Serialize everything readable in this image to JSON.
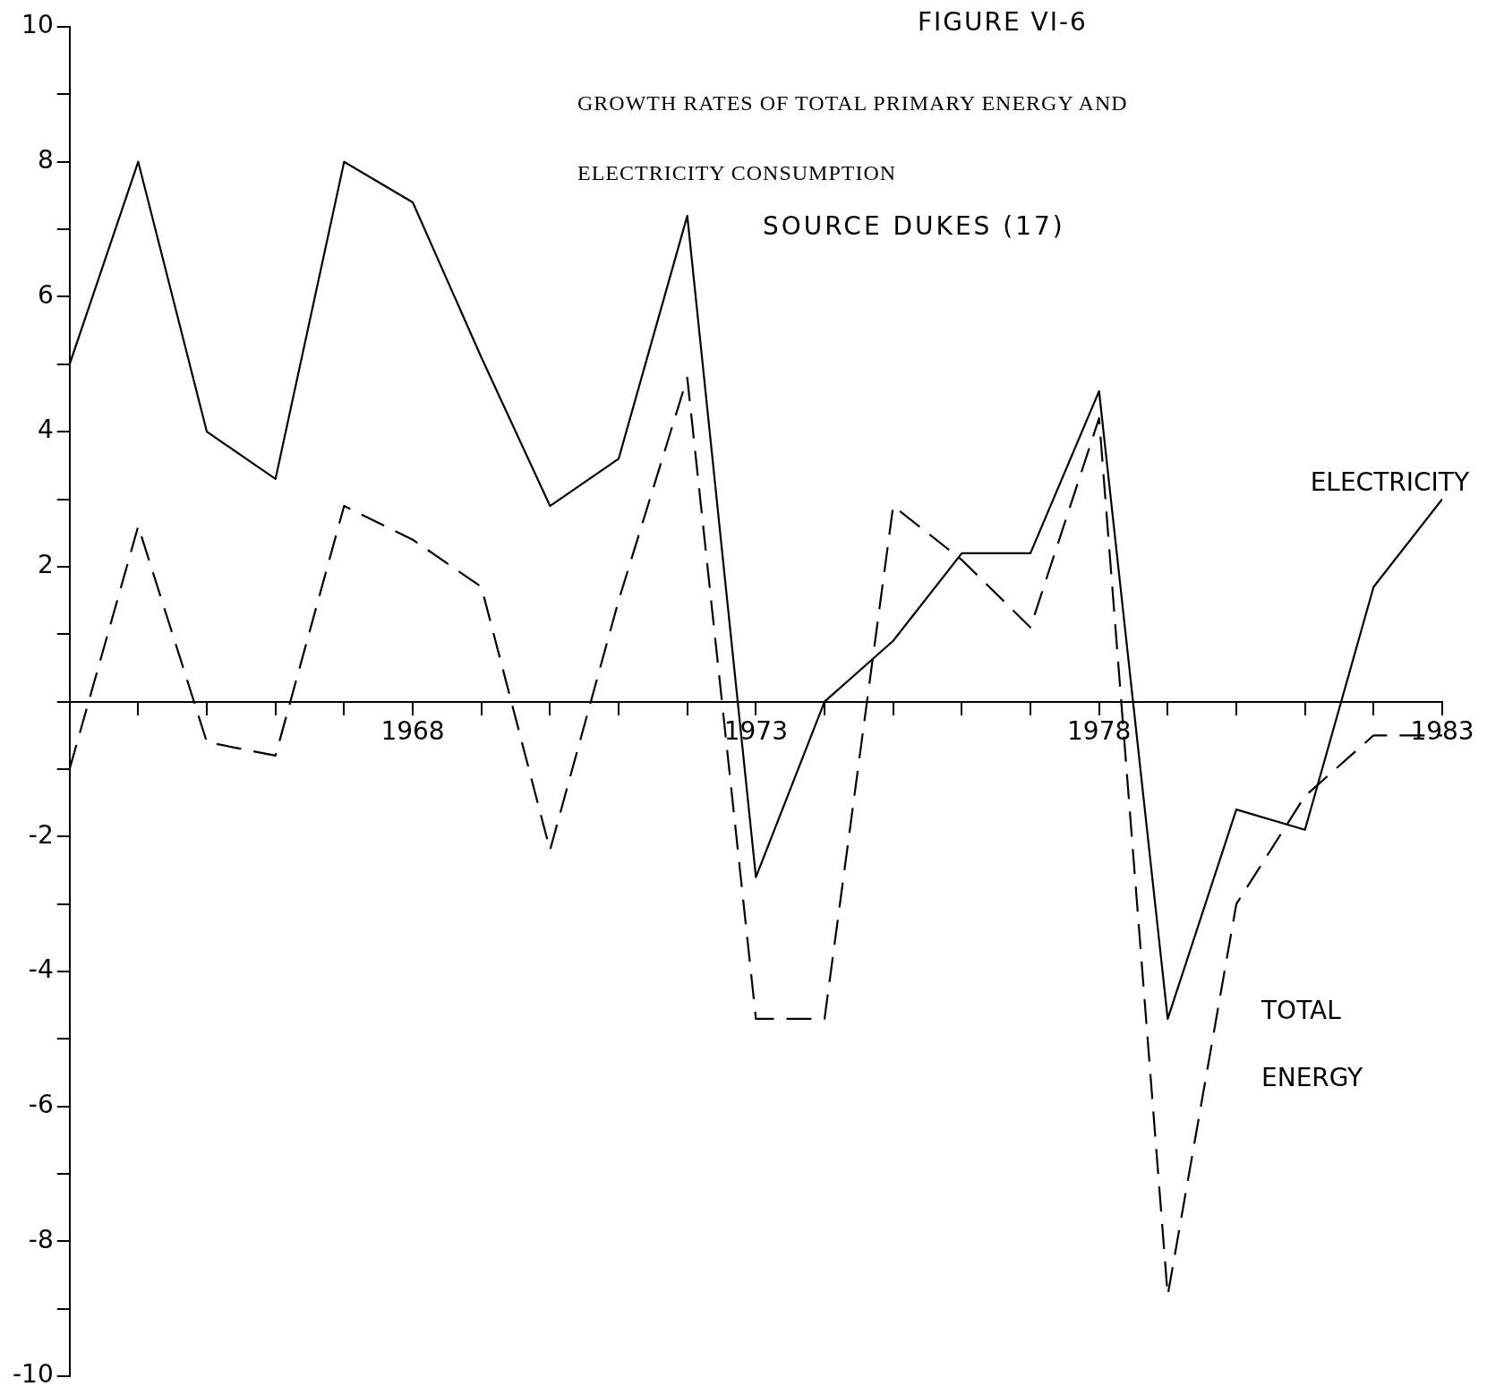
{
  "chart_data": {
    "type": "line",
    "title": "FIGURE VI-6",
    "subtitle": "GROWTH RATES OF TOTAL PRIMARY ENERGY AND ELECTRICITY CONSUMPTION",
    "annotations": [
      "SOURCE DUKES (17)"
    ],
    "x": [
      1963,
      1964,
      1965,
      1966,
      1967,
      1968,
      1969,
      1970,
      1971,
      1972,
      1973,
      1974,
      1975,
      1976,
      1977,
      1978,
      1979,
      1980,
      1981,
      1982,
      1983
    ],
    "series": [
      {
        "name": "ELECTRICITY",
        "color": "#000000",
        "line_style": "solid",
        "values": [
          5.0,
          8.0,
          4.0,
          3.3,
          8.0,
          7.4,
          5.1,
          2.9,
          3.6,
          7.2,
          -2.6,
          0,
          0.9,
          2.2,
          2.2,
          4.6,
          -4.7,
          -1.6,
          -1.9,
          1.7,
          3.0
        ]
      },
      {
        "name": "TOTAL ENERGY",
        "color": "#000000",
        "line_style": "dashed",
        "values": [
          -1.0,
          2.6,
          -0.6,
          -0.8,
          2.9,
          2.4,
          1.7,
          -2.2,
          1.5,
          4.8,
          -4.7,
          -4.7,
          2.9,
          2.1,
          1.1,
          4.2,
          -8.8,
          -3.0,
          -1.4,
          -0.5,
          -0.5
        ]
      }
    ],
    "xlim": [
      1963,
      1983
    ],
    "xticks": [
      {
        "value": 1963,
        "label": null
      },
      {
        "value": 1964,
        "label": null
      },
      {
        "value": 1965,
        "label": null
      },
      {
        "value": 1966,
        "label": null
      },
      {
        "value": 1967,
        "label": null
      },
      1968,
      {
        "value": 1969,
        "label": null
      },
      {
        "value": 1970,
        "label": null
      },
      {
        "value": 1971,
        "label": null
      },
      {
        "value": 1972,
        "label": null
      },
      1973,
      {
        "value": 1974,
        "label": null
      },
      {
        "value": 1975,
        "label": null
      },
      {
        "value": 1976,
        "label": null
      },
      {
        "value": 1977,
        "label": null
      },
      1978,
      {
        "value": 1979,
        "label": null
      },
      {
        "value": 1980,
        "label": null
      },
      {
        "value": 1981,
        "label": null
      },
      {
        "value": 1982,
        "label": null
      },
      1983
    ],
    "ylim": [
      -10,
      10
    ],
    "yticks": [
      -10,
      {
        "value": -9,
        "label": null
      },
      -8,
      {
        "value": -7,
        "label": null
      },
      -6,
      {
        "value": -5,
        "label": null
      },
      -4,
      {
        "value": -3,
        "label": null
      },
      -2,
      {
        "value": -1,
        "label": null
      },
      {
        "value": 0,
        "label": null
      },
      {
        "value": 1,
        "label": null
      },
      2,
      {
        "value": 3,
        "label": null
      },
      4,
      {
        "value": 5,
        "label": null
      },
      6,
      {
        "value": 7,
        "label": null
      },
      8,
      {
        "value": 9,
        "label": null
      },
      10
    ],
    "grid": false,
    "legend": false,
    "marker": "none"
  }
}
